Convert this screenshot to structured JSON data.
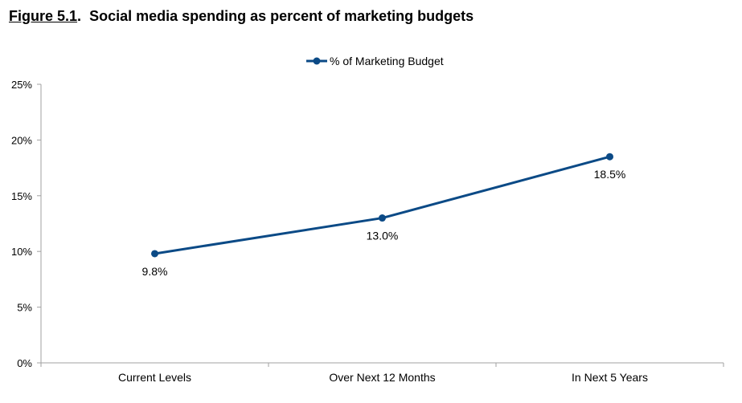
{
  "figure": {
    "number": "Figure 5.1",
    "separator": ".",
    "title": "Social media spending as percent of marketing budgets"
  },
  "chart_data": {
    "type": "line",
    "title": "Social media spending as percent of marketing budgets",
    "categories": [
      "Current Levels",
      "Over Next 12 Months",
      "In Next 5 Years"
    ],
    "series": [
      {
        "name": "% of Marketing Budget",
        "values": [
          9.8,
          13.0,
          18.5
        ],
        "labels": [
          "9.8%",
          "13.0%",
          "18.5%"
        ],
        "color": "#0b4a86"
      }
    ],
    "ylim": [
      0,
      25
    ],
    "yticks": [
      0,
      5,
      10,
      15,
      20,
      25
    ],
    "ytick_labels": [
      "0%",
      "5%",
      "10%",
      "15%",
      "20%",
      "25%"
    ],
    "xlabel": "",
    "ylabel": "",
    "grid": false,
    "legend_position": "top-center",
    "axis_color": "#a0a0a0"
  }
}
